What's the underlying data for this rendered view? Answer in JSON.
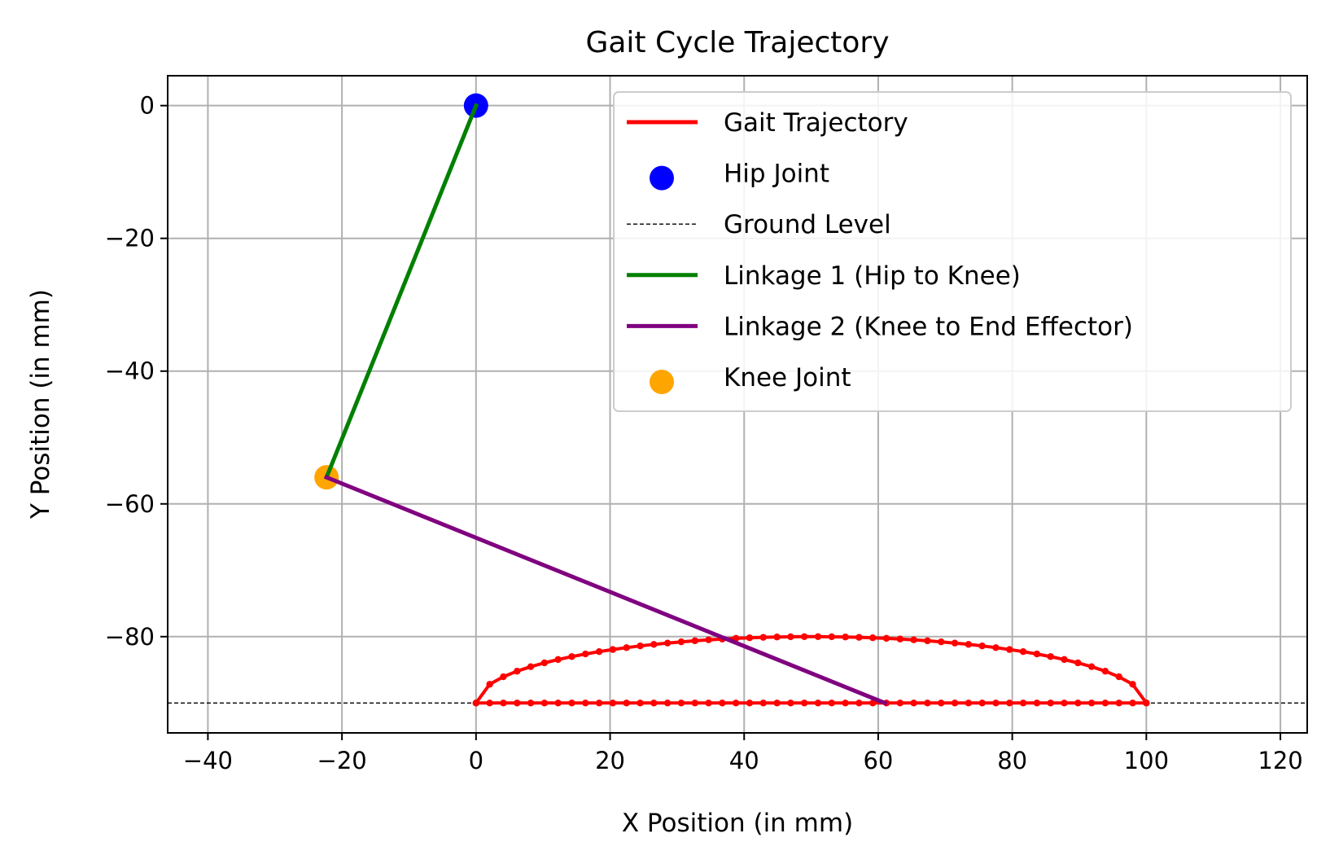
{
  "chart_data": {
    "type": "line",
    "title": "Gait Cycle Trajectory",
    "xlabel": "X Position (in mm)",
    "ylabel": "Y Position (in mm)",
    "xlim": [
      -46,
      124
    ],
    "ylim": [
      -94.5,
      4.5
    ],
    "xticks": [
      -40,
      -20,
      0,
      20,
      40,
      60,
      80,
      100,
      120
    ],
    "yticks": [
      0,
      -20,
      -40,
      -60,
      -80
    ],
    "xtick_labels": [
      "−40",
      "−20",
      "0",
      "20",
      "40",
      "60",
      "80",
      "100",
      "120"
    ],
    "ytick_labels": [
      "0",
      "−20",
      "−40",
      "−60",
      "−80"
    ],
    "grid": true,
    "legend_position": "top-right",
    "colors": {
      "gait": "#ff0000",
      "hip": "#0000ff",
      "ground": "#000000",
      "link1": "#008000",
      "link2": "#800080",
      "knee": "#ffa500",
      "grid": "#b0b0b0"
    },
    "gait_trajectory": {
      "name": "Gait Trajectory",
      "x_start": 0,
      "x_end": 100,
      "ground_y": -90,
      "peak_y": -80,
      "swing_shape": "y = -90 + 10*sqrt(1 - ((x-50)/50)^2)",
      "points_per_phase": 50
    },
    "hip_joint": {
      "name": "Hip Joint",
      "x": 0,
      "y": 0
    },
    "ground_level": {
      "name": "Ground Level",
      "y": -90
    },
    "linkage_1": {
      "name": "Linkage 1 (Hip to Knee)",
      "x": [
        0,
        -22.3
      ],
      "y": [
        0,
        -56
      ]
    },
    "linkage_2": {
      "name": "Linkage 2 (Knee to End Effector)",
      "x": [
        -22.3,
        61
      ],
      "y": [
        -56,
        -90
      ]
    },
    "knee_joint": {
      "name": "Knee Joint",
      "x": -22.3,
      "y": -56
    }
  },
  "legend": [
    {
      "label": "Gait Trajectory",
      "kind": "line",
      "color": "#ff0000",
      "style": "solid"
    },
    {
      "label": "Hip Joint",
      "kind": "marker",
      "color": "#0000ff"
    },
    {
      "label": "Ground Level",
      "kind": "line",
      "color": "#000000",
      "style": "dashed"
    },
    {
      "label": "Linkage 1 (Hip to Knee)",
      "kind": "line",
      "color": "#008000",
      "style": "solid"
    },
    {
      "label": "Linkage 2 (Knee to End Effector)",
      "kind": "line",
      "color": "#800080",
      "style": "solid"
    },
    {
      "label": "Knee Joint",
      "kind": "marker",
      "color": "#ffa500"
    }
  ]
}
